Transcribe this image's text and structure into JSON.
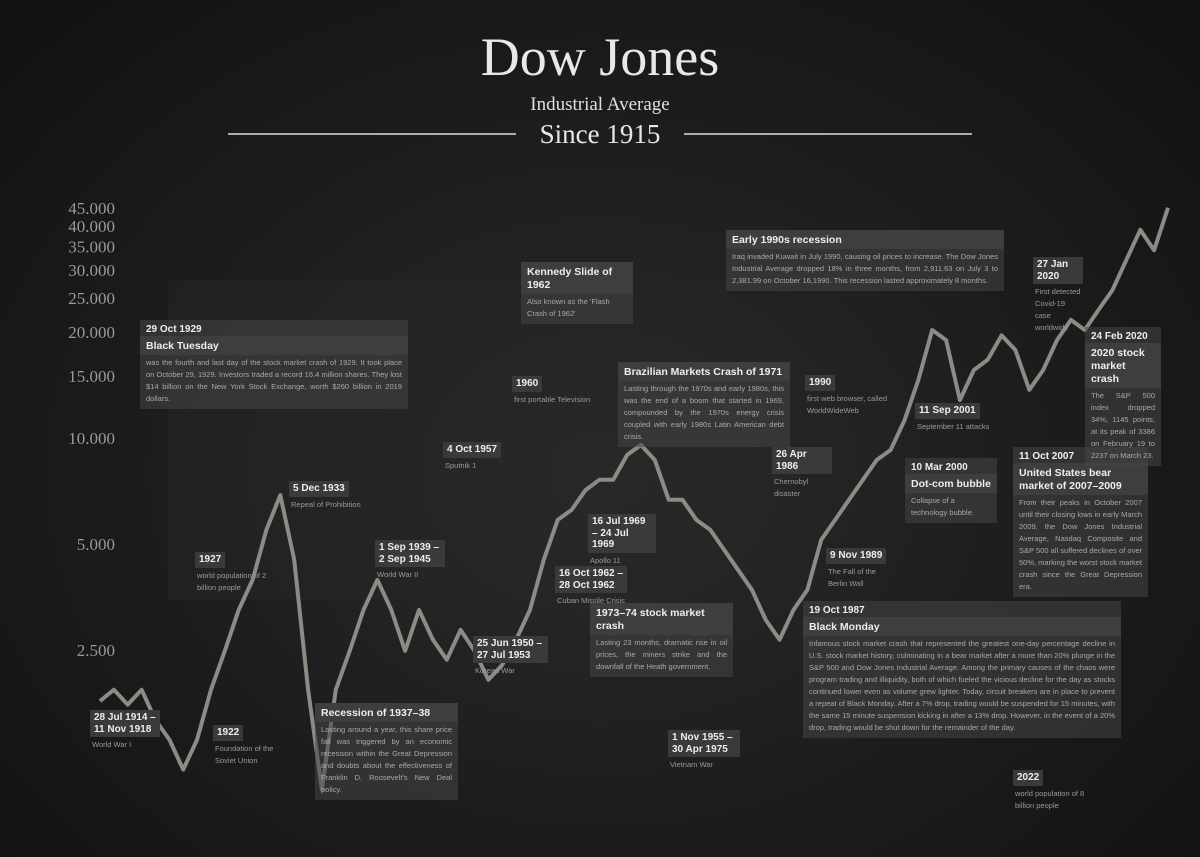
{
  "chart_data": {
    "type": "line",
    "title": "Dow Jones",
    "subtitle": "Industrial Average",
    "period": "Since 1915",
    "color": "#8c8c84",
    "log_scale": true,
    "ylim": [
      1000,
      50000
    ],
    "yticks": [
      {
        "value": 2500,
        "label": "2.500"
      },
      {
        "value": 5000,
        "label": "5.000"
      },
      {
        "value": 10000,
        "label": "10.000"
      },
      {
        "value": 15000,
        "label": "15.000"
      },
      {
        "value": 20000,
        "label": "20.000"
      },
      {
        "value": 25000,
        "label": "25.000"
      },
      {
        "value": 30000,
        "label": "30.000"
      },
      {
        "value": 35000,
        "label": "35.000"
      },
      {
        "value": 40000,
        "label": "40.000"
      },
      {
        "value": 45000,
        "label": "45.000"
      }
    ],
    "values": [
      1800,
      1940,
      1760,
      1940,
      1590,
      1400,
      1150,
      1400,
      1940,
      2500,
      3270,
      3980,
      5520,
      6930,
      4540,
      1940,
      1010,
      1940,
      2500,
      3270,
      3980,
      3270,
      2500,
      3270,
      2690,
      2360,
      2870,
      2500,
      2070,
      2280,
      2690,
      3270,
      4540,
      5890,
      6290,
      7160,
      7660,
      7660,
      9010,
      9620,
      8720,
      6720,
      6720,
      5890,
      5520,
      4840,
      4250,
      3730,
      3060,
      2690,
      3270,
      3730,
      5170,
      5890,
      6720,
      7660,
      8720,
      9310,
      11300,
      14700,
      20400,
      19100,
      12900,
      15700,
      16800,
      19700,
      17900,
      13800,
      15700,
      19100,
      21800,
      20400,
      23300,
      26500,
      32300,
      39300,
      34400,
      45400
    ],
    "annotations": [
      {
        "date": "29 Oct 1929",
        "title": "Black Tuesday",
        "text": "was the fourth and last day of the stock market crash of 1929. It took place on October 29, 1929. Investors traded a record 16.4 million shares. They lost $14 billion on the New York Stock Exchange, worth $260 billion in 2019 dollars."
      },
      {
        "date": "28 Jul 1914 – 11 Nov 1918",
        "text": "World War I"
      },
      {
        "date": "1922",
        "text": "Foundation of the Soviet Union"
      },
      {
        "date": "1927",
        "text": "world population of 2 billion people"
      },
      {
        "date": "5 Dec 1933",
        "text": "Repeal of Prohibition"
      },
      {
        "title": "Recession of 1937–38",
        "text": "Lasting around a year, this share price fall was triggered by an economic recession within the Great Depression and doubts about the effectiveness of Franklin D. Roosevelt's New Deal policy."
      },
      {
        "date": "1 Sep 1939 – 2 Sep 1945",
        "text": "World War II"
      },
      {
        "date": "4 Oct 1957",
        "text": "Sputnik 1"
      },
      {
        "date": "25 Jun 1950 – 27 Jul 1953",
        "text": "Korean War"
      },
      {
        "date": "1960",
        "text": "first portable Television"
      },
      {
        "title": "Kennedy Slide of 1962",
        "text": "Also known as the 'Flash Crash of 1962'"
      },
      {
        "date": "16 Oct 1962 – 28 Oct 1962",
        "text": "Cuban Missile Crisis"
      },
      {
        "date": "16 Jul 1969 – 24 Jul 1969",
        "text": "Apollo 11"
      },
      {
        "title": "Brazilian Markets Crash of 1971",
        "text": "Lasting through the 1970s and early 1980s, this was the end of a boom that started in 1969, compounded by the 1970s energy crisis coupled with early 1980s Latin American debt crisis."
      },
      {
        "title": "1973–74 stock market crash",
        "text": "Lasting 23 months, dramatic rise in oil prices, the miners strike and the downfall of the Heath government."
      },
      {
        "date": "1 Nov 1955 – 30 Apr 1975",
        "text": "Vietnam War"
      },
      {
        "title": "Early 1990s recession",
        "text": "Iraq invaded Kuwait in July 1990, causing oil prices to increase. The Dow Jones Industrial Average dropped 18% in three months, from 2,911.63 on July 3 to 2,381.99 on October 16,1990. This recession lasted approximately 8 months."
      },
      {
        "date": "1990",
        "text": "first web browser, called WorldWideWeb"
      },
      {
        "date": "26 Apr 1986",
        "text": "Chernobyl disaster"
      },
      {
        "date": "9 Nov 1989",
        "text": "The Fall of the Berlin Wall"
      },
      {
        "date": "19 Oct 1987",
        "title": "Black Monday",
        "text": "Infamous stock market crash that represented the greatest one-day percentage decline in U.S. stock market history, culminating in a bear market after a more than 20% plunge in the S&P 500 and Dow Jones Industrial Average. Among the primary causes of the chaos were program trading and illiquidity, both of which fueled the vicious decline for the day as stocks continued lower even as volume grew lighter. Today, circuit breakers are in place to prevent a repeat of Black Monday. After a 7% drop, trading would be suspended for 15 minutes, with the same 15 minute suspension kicking in after a 13% drop. However, in the event of a 20% drop, trading would be shut down for the remainder of the day."
      },
      {
        "date": "11 Sep 2001",
        "text": "September 11 attacks"
      },
      {
        "date": "10 Mar 2000",
        "title": "Dot-com bubble",
        "text": "Collapse of a technology bubble."
      },
      {
        "date": "11 Oct 2007",
        "title": "United States bear market of 2007–2009",
        "text": "From their peaks in October 2007 until their closing lows in early March 2009, the Dow Jones Industrial Average, Nasdaq Composite and S&P 500 all suffered declines of over 50%, marking the worst stock market crash since the Great Depression era."
      },
      {
        "date": "27 Jan 2020",
        "text": "First detected Covid-19 case worldwide"
      },
      {
        "date": "24 Feb 2020",
        "title": "2020 stock market crash",
        "text": "The S&P 500 index dropped 34%, 1145 points, at its peak of 3386 on February 19 to 2237 on March 23."
      },
      {
        "date": "2022",
        "text": "world population of 8 billion people"
      }
    ]
  }
}
